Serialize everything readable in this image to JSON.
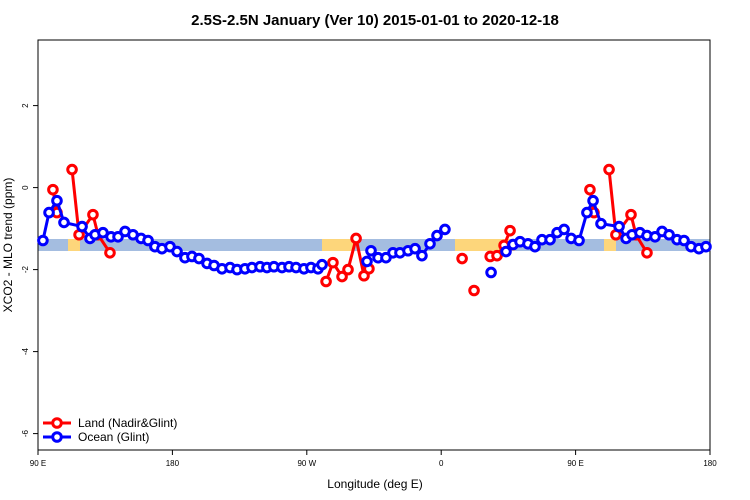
{
  "chart_data": {
    "type": "line",
    "title": "2.5S-2.5N January (Ver 10)   2015-01-01 to 2020-12-18",
    "x_label": "Longitude (deg E)",
    "y_label": "XCO2 - MLO trend (ppm)",
    "xlim": [
      90,
      540
    ],
    "xticks": [
      {
        "value": 90,
        "label": "90 E"
      },
      180,
      {
        "value": 270,
        "label": "90 W"
      },
      {
        "value": 360,
        "label": "0"
      },
      {
        "value": 450,
        "label": "90 E"
      },
      {
        "value": 540,
        "label": "180"
      }
    ],
    "ylim": [
      -6.4,
      3.6
    ],
    "yticks": [
      -6,
      -4,
      -2,
      0,
      2
    ],
    "legend": "bottom-left",
    "series": [
      {
        "name": "Land (Nadir&Glint)",
        "color": "#ff0000",
        "x": [
          100,
          102.7,
          null,
          112.8,
          117.5,
          126.8,
          130.2,
          138.2,
          null,
          282.9,
          287.5,
          293.6,
          297.6,
          303,
          308.3,
          311.6,
          null,
          374,
          null,
          382,
          null,
          392.8,
          397.4,
          402.1,
          406.1,
          null,
          459.6,
          462.3,
          null,
          472.4,
          477,
          487.1,
          490.4,
          497.8
        ],
        "values": [
          -0.05,
          -0.61,
          null,
          0.44,
          -1.15,
          -0.66,
          -1.15,
          -1.59,
          null,
          -2.29,
          -1.83,
          -2.17,
          -2.0,
          -1.24,
          -2.15,
          -1.98,
          null,
          -1.73,
          null,
          -2.51,
          null,
          -1.68,
          -1.66,
          -1.41,
          -1.05,
          null,
          -0.05,
          -0.61,
          null,
          0.44,
          -1.15,
          -0.66,
          -1.15,
          -1.59
        ]
      },
      {
        "name": "Ocean (Glint)",
        "color": "#0000ff",
        "x": [
          93.3,
          97.4,
          102.7,
          107.4,
          119.5,
          124.8,
          128.2,
          133.5,
          138.9,
          143.6,
          148.3,
          153.6,
          159,
          163.7,
          168.3,
          173,
          178.4,
          183.1,
          188.4,
          193.1,
          197.8,
          203.2,
          207.9,
          213.2,
          218.6,
          223.3,
          228.6,
          233.3,
          238.7,
          243.3,
          248,
          253.4,
          258.1,
          262.8,
          268.1,
          272.8,
          277.5,
          280.2,
          null,
          310.3,
          313,
          317.7,
          323,
          327.7,
          332.4,
          337.8,
          342.5,
          347.1,
          352.5,
          357.2,
          362.5,
          null,
          393.4,
          null,
          403.4,
          408.1,
          412.8,
          418.1,
          422.8,
          427.5,
          432.9,
          437.6,
          442.3,
          447,
          452.3,
          457.6,
          461.7,
          467,
          479.1,
          483.8,
          487.8,
          493.1,
          497.8,
          503.2,
          507.9,
          512.6,
          517.9,
          522.6,
          527.3,
          532.6,
          537.3
        ],
        "values": [
          -1.29,
          -0.61,
          -0.32,
          -0.85,
          -0.95,
          -1.24,
          -1.15,
          -1.1,
          -1.2,
          -1.2,
          -1.07,
          -1.15,
          -1.24,
          -1.29,
          -1.44,
          -1.49,
          -1.44,
          -1.56,
          -1.71,
          -1.68,
          -1.73,
          -1.85,
          -1.9,
          -1.98,
          -1.95,
          -2.0,
          -1.98,
          -1.95,
          -1.93,
          -1.95,
          -1.93,
          -1.95,
          -1.93,
          -1.95,
          -1.98,
          -1.95,
          -1.98,
          -1.88,
          null,
          -1.8,
          -1.54,
          -1.71,
          -1.71,
          -1.59,
          -1.59,
          -1.54,
          -1.49,
          -1.66,
          -1.37,
          -1.17,
          -1.02,
          null,
          -2.07,
          null,
          -1.56,
          -1.39,
          -1.32,
          -1.37,
          -1.44,
          -1.27,
          -1.27,
          -1.1,
          -1.02,
          -1.24,
          -1.29,
          -0.61,
          -0.32,
          -0.88,
          -0.95,
          -1.24,
          -1.15,
          -1.1,
          -1.17,
          -1.2,
          -1.07,
          -1.15,
          -1.27,
          -1.29,
          -1.44,
          -1.49,
          -1.44
        ]
      }
    ]
  }
}
